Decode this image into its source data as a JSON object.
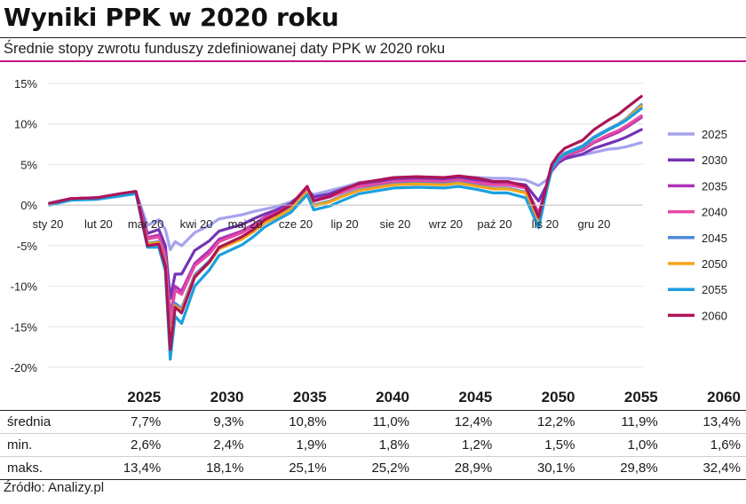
{
  "header": {
    "title": "Wyniki PPK w 2020 roku",
    "subtitle": "Średnie stopy zwrotu funduszy zdefiniowanej daty PPK w 2020 roku"
  },
  "chart_data": {
    "type": "line",
    "title": "",
    "xlabel": "",
    "ylabel": "",
    "ylim": [
      -20,
      15
    ],
    "y_ticks": [
      "15%",
      "10%",
      "5%",
      "0%",
      "-5%",
      "-10%",
      "-15%",
      "-20%"
    ],
    "y_tick_values": [
      15,
      10,
      5,
      0,
      -5,
      -10,
      -15,
      -20
    ],
    "x_ticks": [
      "sty 20",
      "lut 20",
      "mar 20",
      "kwi 20",
      "maj 20",
      "cze 20",
      "lip 20",
      "sie 20",
      "wrz 20",
      "paź 20",
      "lis 20",
      "gru 20"
    ],
    "grid": "horizontal",
    "legend": "right",
    "x": [
      "2020-01-02",
      "2020-01-15",
      "2020-01-31",
      "2020-02-14",
      "2020-02-24",
      "2020-03-02",
      "2020-03-09",
      "2020-03-13",
      "2020-03-16",
      "2020-03-19",
      "2020-03-23",
      "2020-03-31",
      "2020-04-09",
      "2020-04-15",
      "2020-04-29",
      "2020-05-06",
      "2020-05-13",
      "2020-05-20",
      "2020-05-29",
      "2020-06-08",
      "2020-06-12",
      "2020-06-22",
      "2020-06-30",
      "2020-07-10",
      "2020-07-22",
      "2020-07-31",
      "2020-08-14",
      "2020-08-31",
      "2020-09-09",
      "2020-09-21",
      "2020-09-30",
      "2020-10-09",
      "2020-10-20",
      "2020-10-28",
      "2020-11-02",
      "2020-11-05",
      "2020-11-09",
      "2020-11-13",
      "2020-11-24",
      "2020-12-01",
      "2020-12-10",
      "2020-12-16",
      "2020-12-21",
      "2020-12-30"
    ],
    "series": [
      {
        "name": "2025",
        "color": "#a6a2ee",
        "values": [
          0.3,
          0.8,
          0.9,
          1.4,
          1.6,
          -2.5,
          -1.8,
          -3.0,
          -5.5,
          -4.5,
          -5.0,
          -3.4,
          -2.5,
          -1.7,
          -1.2,
          -0.8,
          -0.5,
          -0.2,
          0.4,
          1.7,
          1.3,
          1.8,
          2.2,
          2.8,
          3.0,
          3.3,
          3.4,
          3.4,
          3.5,
          3.4,
          3.3,
          3.3,
          3.1,
          2.4,
          3.1,
          4.2,
          5.2,
          5.8,
          6.2,
          6.5,
          6.9,
          7.0,
          7.2,
          7.7
        ]
      },
      {
        "name": "2030",
        "color": "#7434b4",
        "values": [
          0.2,
          0.8,
          0.9,
          1.3,
          1.6,
          -3.5,
          -3.0,
          -5.0,
          -11.5,
          -8.5,
          -8.5,
          -5.6,
          -4.4,
          -3.2,
          -2.4,
          -1.7,
          -1.1,
          -0.6,
          0.2,
          2.0,
          1.0,
          1.4,
          2.0,
          2.6,
          2.8,
          3.1,
          3.2,
          3.1,
          3.3,
          3.0,
          2.8,
          2.8,
          2.5,
          0.5,
          2.5,
          4.2,
          5.2,
          5.7,
          6.3,
          7.0,
          7.6,
          8.0,
          8.4,
          9.3
        ]
      },
      {
        "name": "2035",
        "color": "#b030b8",
        "values": [
          0.2,
          0.8,
          0.9,
          1.3,
          1.6,
          -4.0,
          -3.7,
          -6.0,
          -13.9,
          -10.0,
          -10.6,
          -7.2,
          -5.6,
          -4.2,
          -3.2,
          -2.4,
          -1.5,
          -0.9,
          0.0,
          1.9,
          0.6,
          1.1,
          1.7,
          2.3,
          2.6,
          2.9,
          3.0,
          2.9,
          3.1,
          2.8,
          2.6,
          2.6,
          2.2,
          -1.0,
          2.3,
          4.3,
          5.4,
          6.0,
          6.8,
          7.7,
          8.5,
          9.0,
          9.6,
          10.8
        ]
      },
      {
        "name": "2040",
        "color": "#e54aa3",
        "values": [
          0.2,
          0.8,
          0.9,
          1.3,
          1.6,
          -4.2,
          -3.9,
          -6.3,
          -14.5,
          -10.5,
          -11.0,
          -7.5,
          -6.0,
          -4.5,
          -3.4,
          -2.6,
          -1.6,
          -1.0,
          0.0,
          1.8,
          0.5,
          1.0,
          1.6,
          2.3,
          2.6,
          2.9,
          3.0,
          2.9,
          3.1,
          2.7,
          2.5,
          2.5,
          2.1,
          -1.2,
          2.3,
          4.4,
          5.5,
          6.1,
          6.9,
          7.8,
          8.7,
          9.2,
          9.8,
          11.0
        ]
      },
      {
        "name": "2045",
        "color": "#4e8cd8",
        "values": [
          0.1,
          0.7,
          0.8,
          1.2,
          1.5,
          -4.7,
          -4.5,
          -7.2,
          -16.8,
          -12.1,
          -12.7,
          -8.6,
          -6.9,
          -5.3,
          -4.1,
          -3.2,
          -2.1,
          -1.4,
          -0.4,
          1.6,
          0.0,
          0.5,
          1.2,
          1.9,
          2.3,
          2.6,
          2.7,
          2.6,
          2.8,
          2.4,
          2.1,
          2.1,
          1.6,
          -1.8,
          2.2,
          4.5,
          5.7,
          6.4,
          7.3,
          8.4,
          9.4,
          10.0,
          10.7,
          12.4
        ]
      },
      {
        "name": "2050",
        "color": "#f5a41a",
        "values": [
          0.1,
          0.7,
          0.8,
          1.2,
          1.5,
          -4.8,
          -4.6,
          -7.3,
          -17.2,
          -12.4,
          -13.0,
          -8.8,
          -7.1,
          -5.4,
          -4.2,
          -3.3,
          -2.2,
          -1.5,
          -0.5,
          1.6,
          -0.1,
          0.4,
          1.1,
          1.8,
          2.2,
          2.5,
          2.6,
          2.5,
          2.7,
          2.3,
          2.0,
          2.0,
          1.5,
          -1.9,
          2.2,
          4.5,
          5.6,
          6.3,
          7.2,
          8.3,
          9.3,
          9.9,
          10.6,
          12.2
        ]
      },
      {
        "name": "2055",
        "color": "#1a9fe0",
        "values": [
          0.0,
          0.6,
          0.7,
          1.1,
          1.4,
          -5.2,
          -5.2,
          -8.1,
          -19.0,
          -13.7,
          -14.6,
          -10.0,
          -8.0,
          -6.2,
          -4.9,
          -3.9,
          -2.7,
          -1.9,
          -0.9,
          1.3,
          -0.6,
          -0.1,
          0.6,
          1.4,
          1.8,
          2.1,
          2.2,
          2.1,
          2.3,
          1.9,
          1.5,
          1.5,
          0.9,
          -2.8,
          1.9,
          4.4,
          5.6,
          6.3,
          7.2,
          8.3,
          9.3,
          9.9,
          10.5,
          11.9
        ]
      },
      {
        "name": "2060",
        "color": "#ad1457",
        "values": [
          0.2,
          0.8,
          0.9,
          1.4,
          1.7,
          -5.0,
          -4.8,
          -7.5,
          -17.8,
          -12.6,
          -13.3,
          -8.9,
          -7.0,
          -5.2,
          -3.9,
          -3.0,
          -1.8,
          -1.1,
          0.0,
          2.3,
          0.5,
          1.1,
          1.9,
          2.7,
          3.1,
          3.4,
          3.5,
          3.4,
          3.6,
          3.3,
          2.9,
          2.9,
          2.3,
          -1.5,
          2.6,
          5.0,
          6.2,
          7.0,
          8.0,
          9.3,
          10.5,
          11.2,
          12.0,
          13.4
        ]
      }
    ]
  },
  "table": {
    "columns": [
      "",
      "2025",
      "2030",
      "2035",
      "2040",
      "2045",
      "2050",
      "2055",
      "2060"
    ],
    "rows": [
      {
        "label": "średnia",
        "values": [
          "7,7%",
          "9,3%",
          "10,8%",
          "11,0%",
          "12,4%",
          "12,2%",
          "11,9%",
          "13,4%"
        ]
      },
      {
        "label": "min.",
        "values": [
          "2,6%",
          "2,4%",
          "1,9%",
          "1,8%",
          "1,2%",
          "1,5%",
          "1,0%",
          "1,6%"
        ]
      },
      {
        "label": "maks.",
        "values": [
          "13,4%",
          "18,1%",
          "25,1%",
          "25,2%",
          "28,9%",
          "30,1%",
          "29,8%",
          "32,4%"
        ]
      }
    ]
  },
  "footer": {
    "source": "Źródło: Analizy.pl"
  }
}
